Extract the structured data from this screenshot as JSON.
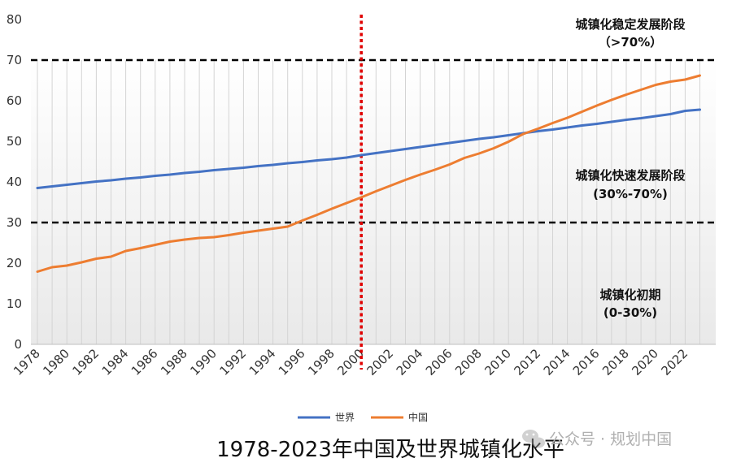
{
  "chart_data": {
    "type": "line",
    "title": "1978-2023年中国及世界城镇化水平",
    "xlabel": "",
    "ylabel": "",
    "ylim": [
      0,
      80
    ],
    "yticks": [
      0,
      10,
      20,
      30,
      40,
      50,
      60,
      70,
      80
    ],
    "xlim": [
      1978,
      2023
    ],
    "xticks": [
      1978,
      1980,
      1982,
      1984,
      1986,
      1988,
      1990,
      1992,
      1994,
      1996,
      1998,
      2000,
      2002,
      2004,
      2006,
      2008,
      2010,
      2012,
      2014,
      2016,
      2018,
      2020,
      2022
    ],
    "legend_position": "bottom",
    "series": [
      {
        "name": "世界",
        "color": "#4472C4",
        "x": [
          1978,
          1979,
          1980,
          1981,
          1982,
          1983,
          1984,
          1985,
          1986,
          1987,
          1988,
          1989,
          1990,
          1991,
          1992,
          1993,
          1994,
          1995,
          1996,
          1997,
          1998,
          1999,
          2000,
          2001,
          2002,
          2003,
          2004,
          2005,
          2006,
          2007,
          2008,
          2009,
          2010,
          2011,
          2012,
          2013,
          2014,
          2015,
          2016,
          2017,
          2018,
          2019,
          2020,
          2021,
          2022,
          2023
        ],
        "values": [
          38.5,
          38.9,
          39.3,
          39.7,
          40.1,
          40.4,
          40.8,
          41.1,
          41.5,
          41.8,
          42.2,
          42.5,
          42.9,
          43.2,
          43.5,
          43.9,
          44.2,
          44.6,
          44.9,
          45.3,
          45.6,
          46.0,
          46.6,
          47.1,
          47.6,
          48.1,
          48.6,
          49.1,
          49.6,
          50.1,
          50.6,
          51.0,
          51.5,
          52.0,
          52.5,
          52.9,
          53.4,
          53.9,
          54.3,
          54.8,
          55.3,
          55.7,
          56.2,
          56.7,
          57.5,
          57.8
        ]
      },
      {
        "name": "中国",
        "color": "#ED7D31",
        "x": [
          1978,
          1979,
          1980,
          1981,
          1982,
          1983,
          1984,
          1985,
          1986,
          1987,
          1988,
          1989,
          1990,
          1991,
          1992,
          1993,
          1994,
          1995,
          1996,
          1997,
          1998,
          1999,
          2000,
          2001,
          2002,
          2003,
          2004,
          2005,
          2006,
          2007,
          2008,
          2009,
          2010,
          2011,
          2012,
          2013,
          2014,
          2015,
          2016,
          2017,
          2018,
          2019,
          2020,
          2021,
          2022,
          2023
        ],
        "values": [
          17.9,
          19.0,
          19.4,
          20.2,
          21.1,
          21.6,
          23.0,
          23.7,
          24.5,
          25.3,
          25.8,
          26.2,
          26.4,
          26.9,
          27.5,
          28.0,
          28.5,
          29.0,
          30.5,
          31.9,
          33.4,
          34.8,
          36.2,
          37.7,
          39.1,
          40.5,
          41.8,
          43.0,
          44.3,
          45.9,
          47.0,
          48.3,
          49.9,
          51.8,
          53.1,
          54.5,
          55.8,
          57.3,
          58.8,
          60.2,
          61.5,
          62.7,
          63.9,
          64.7,
          65.2,
          66.2
        ]
      }
    ],
    "reference_lines": {
      "horizontal": [
        30,
        70
      ],
      "vertical": [
        2000
      ]
    },
    "annotations": [
      {
        "line1": "城镇化稳定发展阶段",
        "line2": "（>70%）"
      },
      {
        "line1": "城镇化快速发展阶段",
        "line2": "(30%-70%)"
      },
      {
        "line1": "城镇化初期",
        "line2": "(0-30%)"
      }
    ],
    "watermark": "公众号 · 规划中国"
  }
}
